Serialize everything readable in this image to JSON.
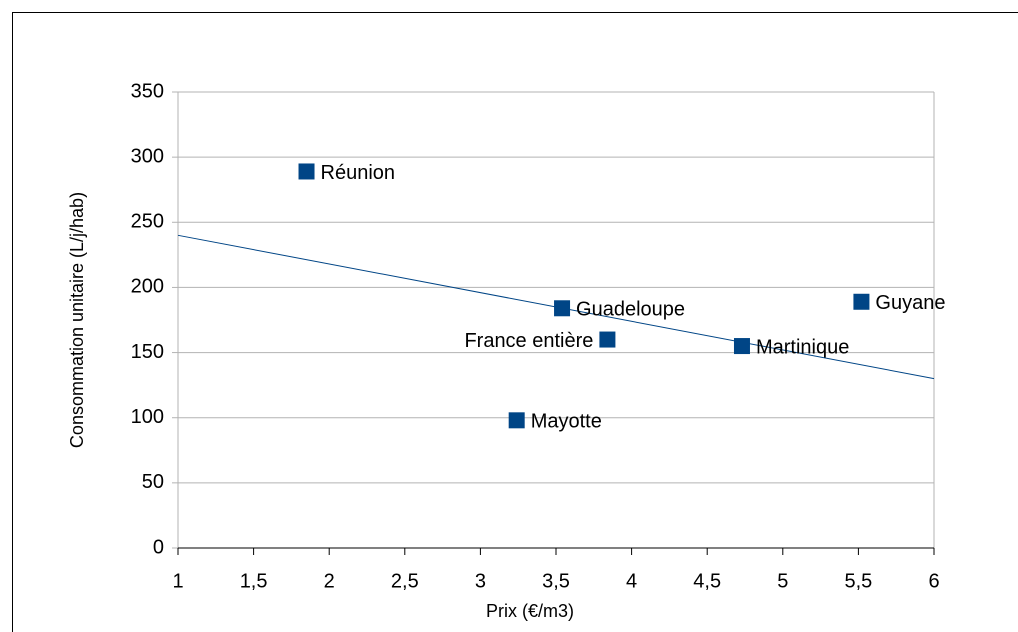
{
  "chart_data": {
    "type": "scatter",
    "x_label": "Prix (€/m3)",
    "y_label": "Consommation unitaire (L/j/hab)",
    "series": [
      {
        "name": "Consommation",
        "color": "#004586",
        "labels": [
          "Réunion",
          "Guadeloupe",
          "France entière",
          "Martinique",
          "Guyane",
          "Mayotte"
        ],
        "label_positions": [
          "right",
          "right",
          "left",
          "right",
          "right",
          "right"
        ],
        "x": [
          1.85,
          3.54,
          3.84,
          4.73,
          5.52,
          3.24
        ],
        "values": [
          289,
          184,
          160,
          155,
          189,
          98
        ]
      }
    ],
    "trendline": {
      "color": "#004586",
      "x": [
        1,
        6
      ],
      "values": [
        240,
        130
      ]
    },
    "xlim": [
      1,
      6
    ],
    "xticks": [
      1,
      {
        "value": 1.5,
        "label": "1,5"
      },
      2,
      {
        "value": 2.5,
        "label": "2,5"
      },
      3,
      {
        "value": 3.5,
        "label": "3,5"
      },
      4,
      {
        "value": 4.5,
        "label": "4,5"
      },
      5,
      {
        "value": 5.5,
        "label": "5,5"
      },
      6
    ],
    "ylim": [
      0,
      350
    ],
    "yticks": [
      0,
      50,
      100,
      150,
      200,
      250,
      300,
      350
    ],
    "grid": true
  }
}
